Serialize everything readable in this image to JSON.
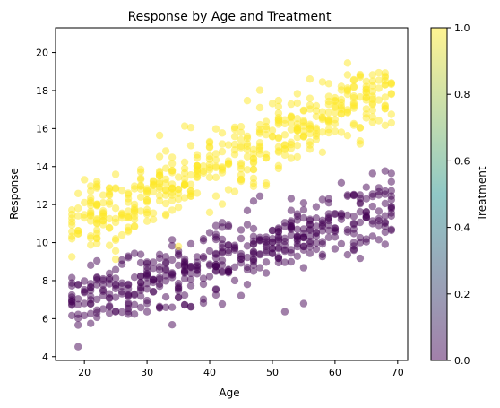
{
  "chart_data": {
    "type": "scatter",
    "title": "Response by Age and Treatment",
    "xlabel": "Age",
    "ylabel": "Response",
    "xlim": [
      15.4,
      71.6
    ],
    "ylim": [
      3.8,
      21.3
    ],
    "xticks": [
      20,
      30,
      40,
      50,
      60,
      70
    ],
    "yticks": [
      4,
      6,
      8,
      10,
      12,
      14,
      16,
      18,
      20
    ],
    "grid": false,
    "marker_alpha": 0.5,
    "colorbar": {
      "label": "Treatment",
      "range": [
        0.0,
        1.0
      ],
      "ticks": [
        "0.0",
        "0.2",
        "0.4",
        "0.6",
        "0.8",
        "1.0"
      ],
      "colormap": "viridis",
      "color_low": "#440154",
      "color_mid": "#21918c",
      "color_high": "#fde725"
    },
    "series": [
      {
        "treatment": 0,
        "color": "#440154",
        "trend": {
          "intercept": 5.2,
          "slope": 0.095
        },
        "spread": 0.9,
        "age_range": [
          18,
          69
        ],
        "count": 500
      },
      {
        "treatment": 1,
        "color": "#fde725",
        "trend": {
          "intercept": 8.2,
          "slope": 0.145
        },
        "spread": 0.9,
        "age_range": [
          18,
          69
        ],
        "count": 500
      }
    ]
  }
}
